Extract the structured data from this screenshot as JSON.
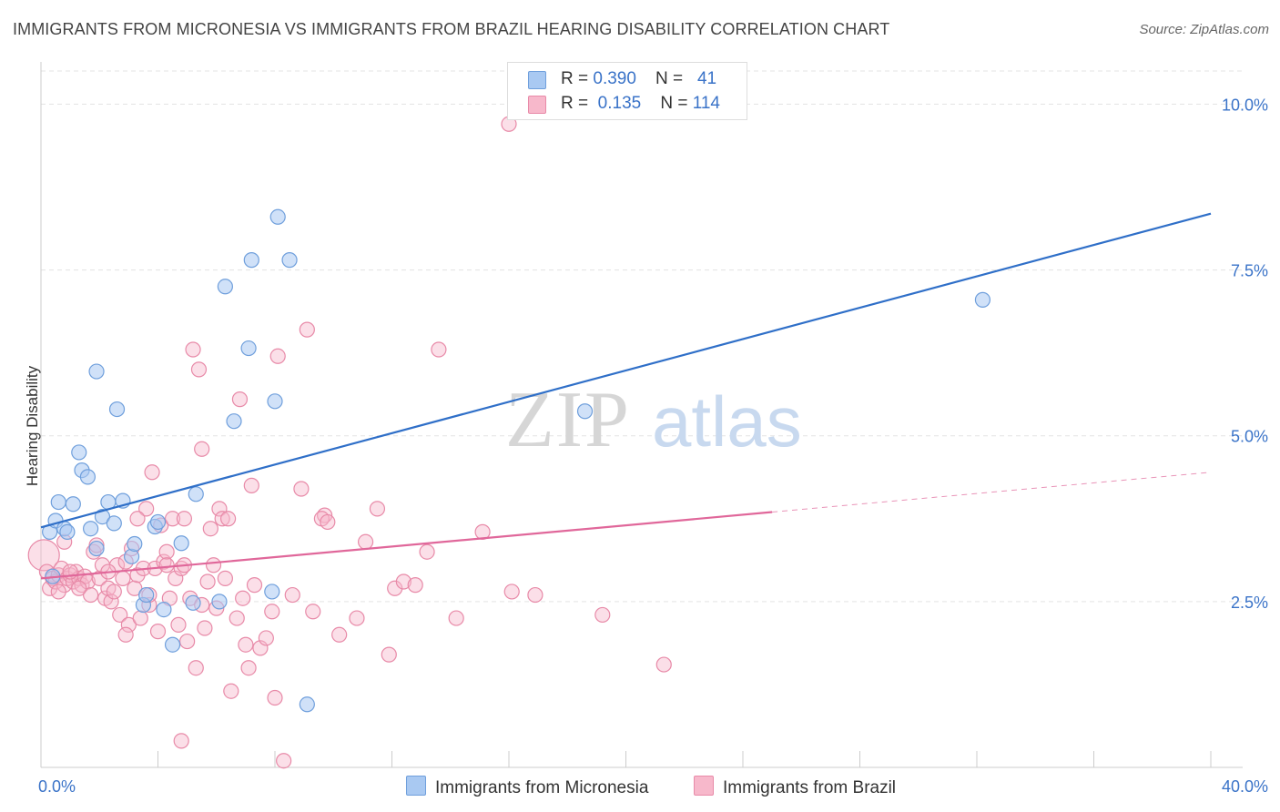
{
  "header": {
    "title": "IMMIGRANTS FROM MICRONESIA VS IMMIGRANTS FROM BRAZIL HEARING DISABILITY CORRELATION CHART",
    "source": "Source: ZipAtlas.com"
  },
  "watermark": {
    "zip": "ZIP",
    "atlas": "atlas"
  },
  "legend_top": {
    "rows": [
      {
        "r_label": "R = ",
        "r_value": "0.390",
        "n_label": "N = ",
        "n_value": "41",
        "color": "#a9c9f2"
      },
      {
        "r_label": "R = ",
        "r_value": "0.135",
        "n_label": "N = ",
        "n_value": "114",
        "color": "#f7b8cb"
      }
    ]
  },
  "colors": {
    "micronesia_fill": "#a9c9f2",
    "micronesia_stroke": "#6f9fdc",
    "micronesia_line": "#2f6fc8",
    "brazil_fill": "#f7b8cb",
    "brazil_stroke": "#e88aa8",
    "brazil_line": "#e0679a",
    "grid": "#e3e3e3",
    "tick_label": "#3a73c8"
  },
  "chart_data": {
    "type": "scatter",
    "title": "IMMIGRANTS FROM MICRONESIA VS IMMIGRANTS FROM BRAZIL HEARING DISABILITY CORRELATION CHART",
    "xlabel": "",
    "ylabel": "Hearing Disability",
    "xlim": [
      0,
      40
    ],
    "ylim": [
      0,
      10.5
    ],
    "x_tick_labels": [
      {
        "value": 0,
        "label": "0.0%"
      },
      {
        "value": 40,
        "label": "40.0%"
      }
    ],
    "y_ticks": [
      {
        "value": 2.5,
        "label": "2.5%"
      },
      {
        "value": 5.0,
        "label": "5.0%"
      },
      {
        "value": 7.5,
        "label": "7.5%"
      },
      {
        "value": 10.0,
        "label": "10.0%"
      }
    ],
    "x_minor_ticks": [
      4,
      8,
      12,
      16,
      20,
      24,
      28,
      32,
      36,
      40
    ],
    "grid": true,
    "legend_position": "top-center",
    "series": [
      {
        "name": "Immigrants from Micronesia",
        "r": 0.39,
        "n": 41,
        "trend": {
          "x0": 0,
          "y0": 3.62,
          "x1": 40,
          "y1": 8.35
        },
        "points": [
          [
            0.3,
            3.55
          ],
          [
            0.5,
            3.72
          ],
          [
            0.6,
            4.0
          ],
          [
            0.8,
            3.6
          ],
          [
            0.9,
            3.55
          ],
          [
            1.1,
            3.97
          ],
          [
            1.3,
            4.75
          ],
          [
            1.4,
            4.48
          ],
          [
            1.6,
            4.38
          ],
          [
            1.7,
            3.6
          ],
          [
            1.9,
            3.3
          ],
          [
            1.9,
            5.97
          ],
          [
            2.1,
            3.78
          ],
          [
            2.3,
            4.0
          ],
          [
            2.5,
            3.68
          ],
          [
            2.6,
            5.4
          ],
          [
            2.8,
            4.02
          ],
          [
            3.1,
            3.18
          ],
          [
            3.2,
            3.37
          ],
          [
            3.5,
            2.45
          ],
          [
            3.6,
            2.6
          ],
          [
            3.9,
            3.63
          ],
          [
            4.0,
            3.7
          ],
          [
            4.2,
            2.38
          ],
          [
            4.5,
            1.85
          ],
          [
            4.8,
            3.38
          ],
          [
            5.2,
            2.48
          ],
          [
            5.3,
            4.12
          ],
          [
            6.1,
            2.5
          ],
          [
            6.3,
            7.25
          ],
          [
            6.6,
            5.22
          ],
          [
            7.1,
            6.32
          ],
          [
            7.2,
            7.65
          ],
          [
            7.9,
            2.65
          ],
          [
            8.0,
            5.52
          ],
          [
            8.1,
            8.3
          ],
          [
            8.5,
            7.65
          ],
          [
            9.1,
            0.95
          ],
          [
            18.6,
            5.37
          ],
          [
            32.2,
            7.05
          ],
          [
            0.4,
            2.88
          ]
        ]
      },
      {
        "name": "Immigrants from Brazil",
        "r": 0.135,
        "n": 114,
        "trend": {
          "x0": 0,
          "y0": 2.85,
          "x1": 25,
          "y1": 3.85
        },
        "trend_ext": {
          "x0": 25,
          "y0": 3.85,
          "x1": 40,
          "y1": 4.45
        },
        "points": [
          [
            0.1,
            3.2
          ],
          [
            0.2,
            2.95
          ],
          [
            0.3,
            2.7
          ],
          [
            0.4,
            2.85
          ],
          [
            0.5,
            2.8
          ],
          [
            0.6,
            2.9
          ],
          [
            0.7,
            3.0
          ],
          [
            0.8,
            2.75
          ],
          [
            0.9,
            2.85
          ],
          [
            1.0,
            2.9
          ],
          [
            1.1,
            2.8
          ],
          [
            1.2,
            2.95
          ],
          [
            1.3,
            2.85
          ],
          [
            1.4,
            2.75
          ],
          [
            1.5,
            2.88
          ],
          [
            1.6,
            2.8
          ],
          [
            1.7,
            2.6
          ],
          [
            1.8,
            3.25
          ],
          [
            1.9,
            3.35
          ],
          [
            2.0,
            2.85
          ],
          [
            2.1,
            3.05
          ],
          [
            2.2,
            2.55
          ],
          [
            2.3,
            2.7
          ],
          [
            2.4,
            2.5
          ],
          [
            2.5,
            2.65
          ],
          [
            2.6,
            3.05
          ],
          [
            2.7,
            2.3
          ],
          [
            2.8,
            2.85
          ],
          [
            2.9,
            3.1
          ],
          [
            3.0,
            2.15
          ],
          [
            3.1,
            3.3
          ],
          [
            3.2,
            2.7
          ],
          [
            3.3,
            2.9
          ],
          [
            3.4,
            2.25
          ],
          [
            3.5,
            3.0
          ],
          [
            3.6,
            3.9
          ],
          [
            3.7,
            2.45
          ],
          [
            3.8,
            4.45
          ],
          [
            3.9,
            3.0
          ],
          [
            4.0,
            2.05
          ],
          [
            4.1,
            3.65
          ],
          [
            4.2,
            3.1
          ],
          [
            4.3,
            3.25
          ],
          [
            4.4,
            2.55
          ],
          [
            4.5,
            3.75
          ],
          [
            4.6,
            2.85
          ],
          [
            4.7,
            2.15
          ],
          [
            4.8,
            3.0
          ],
          [
            4.9,
            3.75
          ],
          [
            5.0,
            1.9
          ],
          [
            5.1,
            2.55
          ],
          [
            5.2,
            6.3
          ],
          [
            5.3,
            1.5
          ],
          [
            5.4,
            6.0
          ],
          [
            5.5,
            4.8
          ],
          [
            5.6,
            2.1
          ],
          [
            5.7,
            2.8
          ],
          [
            5.8,
            3.6
          ],
          [
            5.9,
            3.05
          ],
          [
            6.0,
            2.4
          ],
          [
            6.1,
            3.9
          ],
          [
            6.2,
            3.75
          ],
          [
            6.3,
            2.85
          ],
          [
            6.5,
            1.15
          ],
          [
            6.7,
            2.25
          ],
          [
            6.8,
            5.55
          ],
          [
            7.0,
            1.85
          ],
          [
            7.1,
            1.5
          ],
          [
            7.2,
            4.25
          ],
          [
            7.5,
            1.8
          ],
          [
            7.7,
            1.95
          ],
          [
            7.9,
            2.35
          ],
          [
            8.0,
            1.05
          ],
          [
            8.1,
            6.2
          ],
          [
            8.3,
            0.1
          ],
          [
            8.6,
            2.6
          ],
          [
            8.9,
            4.2
          ],
          [
            9.1,
            6.6
          ],
          [
            9.3,
            2.35
          ],
          [
            9.7,
            3.8
          ],
          [
            10.2,
            2.0
          ],
          [
            10.8,
            2.25
          ],
          [
            11.1,
            3.4
          ],
          [
            11.5,
            3.9
          ],
          [
            11.9,
            1.7
          ],
          [
            12.1,
            2.7
          ],
          [
            12.4,
            2.8
          ],
          [
            13.2,
            3.25
          ],
          [
            13.6,
            6.3
          ],
          [
            14.2,
            2.25
          ],
          [
            15.1,
            3.55
          ],
          [
            16.0,
            9.7
          ],
          [
            16.1,
            2.65
          ],
          [
            16.9,
            2.6
          ],
          [
            19.2,
            2.3
          ],
          [
            21.3,
            1.55
          ],
          [
            4.8,
            0.4
          ],
          [
            3.3,
            3.75
          ],
          [
            2.9,
            2.0
          ],
          [
            0.6,
            2.65
          ],
          [
            1.0,
            2.95
          ],
          [
            1.3,
            2.7
          ],
          [
            4.3,
            3.05
          ],
          [
            5.5,
            2.45
          ],
          [
            6.4,
            3.75
          ],
          [
            9.6,
            3.75
          ],
          [
            9.8,
            3.7
          ],
          [
            12.8,
            2.75
          ],
          [
            2.3,
            2.95
          ],
          [
            3.7,
            2.6
          ],
          [
            4.9,
            3.05
          ],
          [
            7.3,
            2.75
          ],
          [
            0.8,
            3.4
          ],
          [
            6.9,
            2.55
          ]
        ]
      }
    ]
  }
}
